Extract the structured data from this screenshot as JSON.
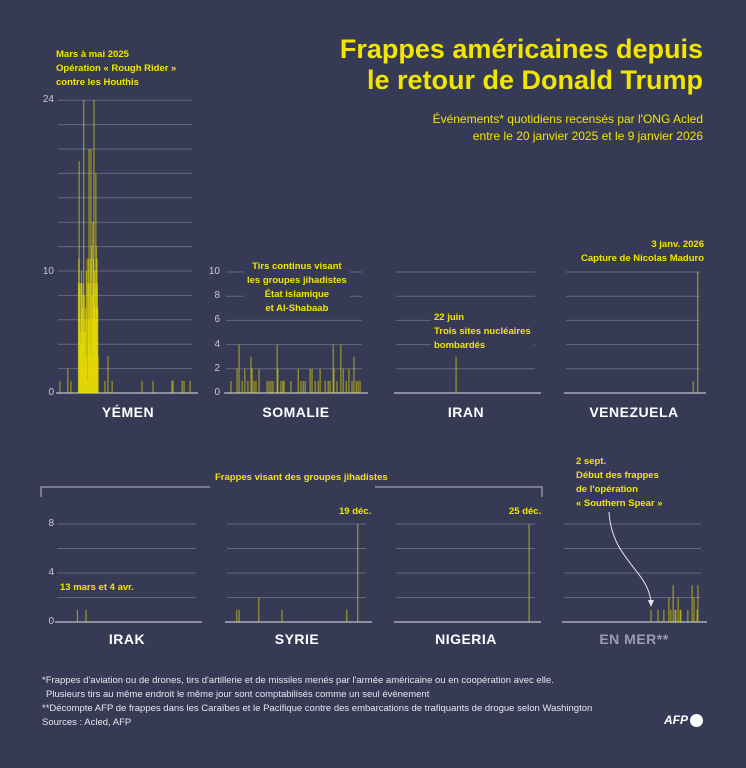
{
  "header": {
    "title_line1": "Frappes américaines depuis",
    "title_line2": "le retour de Donald Trump",
    "subtitle_line1": "Événements* quotidiens recensés par l'ONG Acled",
    "subtitle_line2": "entre le 20 janvier 2025 et le 9 janvier 2026"
  },
  "annotations": {
    "yemen": [
      "Mars à mai 2025",
      "Opération « Rough Rider »",
      "contre les Houthis"
    ],
    "somalie": [
      "Tirs continus visant",
      "les groupes jihadistes",
      "État islamique",
      "et Al-Shabaab"
    ],
    "iran": [
      "22 juin",
      "Trois sites nucléaires",
      "bombardés"
    ],
    "venezuela": [
      "3 janv. 2026",
      "Capture de Nicolas Maduro"
    ],
    "irak": "13 mars et 4 avr.",
    "syrie": "19 déc.",
    "nigeria": "25 déc.",
    "en_mer": [
      "2 sept.",
      "Début des frappes",
      "de l'opération",
      "« Southern Spear »"
    ],
    "jihadist_bracket": "Frappes visant des groupes jihadistes"
  },
  "footer": {
    "note1": "*Frappes d'aviation ou de drones, tirs d'artillerie et de missiles menés par l'armée américaine ou en coopération avec elle.",
    "note1b": "Plusieurs tirs au même endroit le même jour sont comptabilisés comme un seul évènement",
    "note2": "**Décompte AFP de frappes dans les Caraïbes et le Pacifique contre des embarcations de trafiquants de drogue selon Washington",
    "sources": "Sources : Acled, AFP",
    "logo": "AFP"
  },
  "colors": {
    "background": "#363a55",
    "bar": "#f2e600",
    "title": "#f2e600",
    "grid": "#63677f",
    "axis": "#a6a9ba",
    "en_mer_label": "#9a9cb2"
  },
  "chart_data": [
    {
      "type": "bar",
      "title": "YÉMEN",
      "x_range": [
        "2025-01-20",
        "2026-01-09"
      ],
      "ylim": [
        0,
        24
      ],
      "ytick_labels": [
        "0",
        "10",
        "24"
      ],
      "grid_step": 2,
      "bars": [
        [
          "2025-01-25",
          1
        ],
        [
          "2025-02-15",
          2
        ],
        [
          "2025-02-23",
          1
        ],
        [
          "2025-03-15",
          9
        ],
        [
          "2025-03-16",
          11
        ],
        [
          "2025-03-17",
          19
        ],
        [
          "2025-03-18",
          9
        ],
        [
          "2025-03-19",
          6
        ],
        [
          "2025-03-20",
          5
        ],
        [
          "2025-03-21",
          9
        ],
        [
          "2025-03-22",
          4
        ],
        [
          "2025-03-23",
          10
        ],
        [
          "2025-03-24",
          9
        ],
        [
          "2025-03-25",
          8
        ],
        [
          "2025-03-26",
          7
        ],
        [
          "2025-03-27",
          5
        ],
        [
          "2025-03-28",
          9
        ],
        [
          "2025-03-29",
          24
        ],
        [
          "2025-03-30",
          6
        ],
        [
          "2025-03-31",
          8
        ],
        [
          "2025-04-01",
          5
        ],
        [
          "2025-04-02",
          3
        ],
        [
          "2025-04-03",
          7
        ],
        [
          "2025-04-04",
          6
        ],
        [
          "2025-04-05",
          10
        ],
        [
          "2025-04-06",
          3
        ],
        [
          "2025-04-07",
          11
        ],
        [
          "2025-04-08",
          1
        ],
        [
          "2025-04-09",
          9
        ],
        [
          "2025-04-10",
          6
        ],
        [
          "2025-04-11",
          11
        ],
        [
          "2025-04-12",
          20
        ],
        [
          "2025-04-13",
          4
        ],
        [
          "2025-04-14",
          9
        ],
        [
          "2025-04-15",
          6
        ],
        [
          "2025-04-16",
          11
        ],
        [
          "2025-04-17",
          20
        ],
        [
          "2025-04-18",
          3
        ],
        [
          "2025-04-19",
          12
        ],
        [
          "2025-04-20",
          8
        ],
        [
          "2025-04-21",
          6
        ],
        [
          "2025-04-22",
          14
        ],
        [
          "2025-04-23",
          9
        ],
        [
          "2025-04-24",
          11
        ],
        [
          "2025-04-25",
          24
        ],
        [
          "2025-04-26",
          7
        ],
        [
          "2025-04-27",
          10
        ],
        [
          "2025-04-28",
          9
        ],
        [
          "2025-04-29",
          6
        ],
        [
          "2025-04-30",
          18
        ],
        [
          "2025-05-01",
          12
        ],
        [
          "2025-05-02",
          7
        ],
        [
          "2025-05-03",
          11
        ],
        [
          "2025-05-04",
          9
        ],
        [
          "2025-05-05",
          7
        ],
        [
          "2025-05-06",
          3
        ],
        [
          "2025-05-24",
          1
        ],
        [
          "2025-06-01",
          3
        ],
        [
          "2025-06-12",
          1
        ],
        [
          "2025-08-30",
          1
        ],
        [
          "2025-09-28",
          1
        ],
        [
          "2025-11-17",
          1
        ],
        [
          "2025-11-20",
          1
        ],
        [
          "2025-12-14",
          1
        ],
        [
          "2025-12-19",
          1
        ],
        [
          "2026-01-04",
          1
        ]
      ]
    },
    {
      "type": "bar",
      "title": "SOMALIE",
      "x_range": [
        "2025-01-20",
        "2026-01-09"
      ],
      "ylim": [
        0,
        10
      ],
      "ytick_labels": [
        "0",
        "2",
        "4",
        "6",
        "8",
        "10"
      ],
      "grid_step": 2,
      "bars": [
        [
          "2025-02-02",
          1
        ],
        [
          "2025-02-18",
          2
        ],
        [
          "2025-02-23",
          4
        ],
        [
          "2025-03-03",
          1
        ],
        [
          "2025-03-10",
          2
        ],
        [
          "2025-03-18",
          1
        ],
        [
          "2025-03-26",
          3
        ],
        [
          "2025-03-29",
          2
        ],
        [
          "2025-04-03",
          1
        ],
        [
          "2025-04-08",
          1
        ],
        [
          "2025-04-16",
          2
        ],
        [
          "2025-05-07",
          1
        ],
        [
          "2025-05-12",
          1
        ],
        [
          "2025-05-17",
          1
        ],
        [
          "2025-05-22",
          1
        ],
        [
          "2025-06-02",
          4
        ],
        [
          "2025-06-04",
          2
        ],
        [
          "2025-06-12",
          1
        ],
        [
          "2025-06-17",
          1
        ],
        [
          "2025-06-20",
          1
        ],
        [
          "2025-07-08",
          1
        ],
        [
          "2025-07-27",
          2
        ],
        [
          "2025-08-03",
          1
        ],
        [
          "2025-08-09",
          1
        ],
        [
          "2025-08-14",
          1
        ],
        [
          "2025-08-27",
          2
        ],
        [
          "2025-09-01",
          2
        ],
        [
          "2025-09-09",
          1
        ],
        [
          "2025-09-17",
          1
        ],
        [
          "2025-09-22",
          2
        ],
        [
          "2025-10-05",
          1
        ],
        [
          "2025-10-13",
          1
        ],
        [
          "2025-10-18",
          1
        ],
        [
          "2025-10-26",
          4
        ],
        [
          "2025-10-28",
          2
        ],
        [
          "2025-11-05",
          1
        ],
        [
          "2025-11-15",
          4
        ],
        [
          "2025-11-21",
          2
        ],
        [
          "2025-11-29",
          1
        ],
        [
          "2025-12-06",
          2
        ],
        [
          "2025-12-14",
          1
        ],
        [
          "2025-12-19",
          3
        ],
        [
          "2025-12-25",
          1
        ],
        [
          "2025-12-30",
          1
        ],
        [
          "2026-01-04",
          1
        ]
      ]
    },
    {
      "type": "bar",
      "title": "IRAN",
      "x_range": [
        "2025-01-20",
        "2026-01-09"
      ],
      "ylim": [
        0,
        10
      ],
      "grid_step": 2,
      "bars": [
        [
          "2025-06-22",
          3
        ]
      ]
    },
    {
      "type": "bar",
      "title": "VENEZUELA",
      "x_range": [
        "2025-01-20",
        "2026-01-09"
      ],
      "ylim": [
        0,
        10
      ],
      "grid_step": 2,
      "bars": [
        [
          "2025-12-22",
          1
        ],
        [
          "2026-01-03",
          10
        ]
      ]
    },
    {
      "type": "bar",
      "title": "IRAK",
      "x_range": [
        "2025-01-20",
        "2026-01-09"
      ],
      "ylim": [
        0,
        8
      ],
      "ytick_labels": [
        "0",
        "4",
        "8"
      ],
      "grid_step": 2,
      "bars": [
        [
          "2025-03-13",
          1
        ],
        [
          "2025-04-04",
          1
        ]
      ]
    },
    {
      "type": "bar",
      "title": "SYRIE",
      "x_range": [
        "2025-01-20",
        "2026-01-09"
      ],
      "ylim": [
        0,
        8
      ],
      "grid_step": 2,
      "bars": [
        [
          "2025-02-14",
          1
        ],
        [
          "2025-02-20",
          1
        ],
        [
          "2025-04-11",
          2
        ],
        [
          "2025-06-09",
          1
        ],
        [
          "2025-11-21",
          1
        ],
        [
          "2025-12-19",
          8
        ]
      ]
    },
    {
      "type": "bar",
      "title": "NIGERIA",
      "x_range": [
        "2025-01-20",
        "2026-01-09"
      ],
      "ylim": [
        0,
        8
      ],
      "grid_step": 2,
      "bars": [
        [
          "2025-12-25",
          8
        ]
      ]
    },
    {
      "type": "bar",
      "title": "EN MER**",
      "x_range": [
        "2025-01-20",
        "2026-01-09"
      ],
      "ylim": [
        0,
        8
      ],
      "grid_step": 2,
      "bars": [
        [
          "2025-09-02",
          1
        ],
        [
          "2025-09-20",
          1
        ],
        [
          "2025-10-05",
          1
        ],
        [
          "2025-10-18",
          2
        ],
        [
          "2025-10-23",
          1
        ],
        [
          "2025-10-29",
          3
        ],
        [
          "2025-11-03",
          1
        ],
        [
          "2025-11-05",
          1
        ],
        [
          "2025-11-11",
          2
        ],
        [
          "2025-11-16",
          1
        ],
        [
          "2025-11-18",
          1
        ],
        [
          "2025-12-06",
          1
        ],
        [
          "2025-12-17",
          3
        ],
        [
          "2025-12-22",
          2
        ],
        [
          "2025-12-30",
          1
        ],
        [
          "2026-01-01",
          3
        ]
      ]
    }
  ]
}
